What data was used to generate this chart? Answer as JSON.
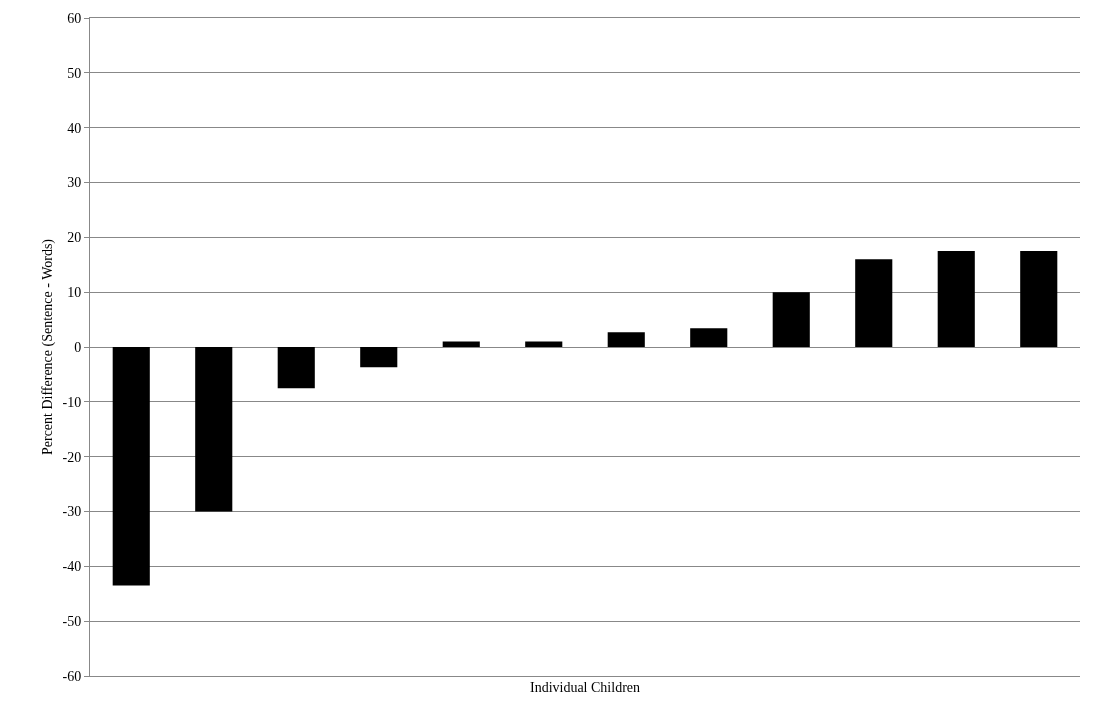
{
  "chart_data": {
    "type": "bar",
    "xlabel": "Individual Children",
    "ylabel": "Percent Difference (Sentence - Words)",
    "categories": [
      null,
      null,
      null,
      null,
      null,
      null,
      null,
      null,
      null,
      null,
      null,
      null
    ],
    "values": [
      -43.5,
      -30,
      -7.5,
      -3.7,
      1,
      1,
      2.7,
      3.4,
      10,
      16,
      17.5,
      17.5
    ],
    "color": "#000000",
    "ylim": [
      -60,
      60
    ],
    "yticks": [
      -60,
      -50,
      -40,
      -30,
      -20,
      -10,
      0,
      10,
      20,
      30,
      40,
      50,
      60
    ],
    "grid": "y",
    "tick_labels": "y"
  }
}
